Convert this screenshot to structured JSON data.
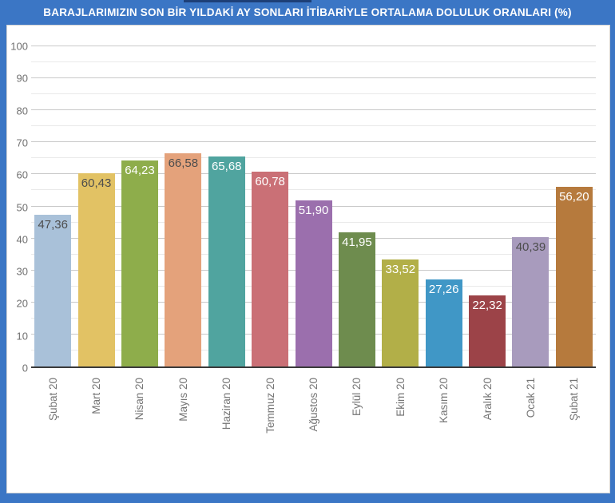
{
  "header": {
    "title": "BARAJLARIMIZIN SON BİR YILDAKİ AY SONLARI İTİBARİYLE ORTALAMA DOLULUK ORANLARI (%)"
  },
  "colors": {
    "frame_blue": "#3b76c5",
    "panel_background": "#ffffff",
    "panel_border": "#d3d3d3",
    "grid_major": "#c9c9c9",
    "grid_minor": "#e9e9e9",
    "axis_line": "#3a3a3a",
    "tick_label": "#757575",
    "title_text": "#ffffff"
  },
  "chart_data": {
    "type": "bar",
    "title": "BARAJLARIMIZIN SON BİR YILDAKİ AY SONLARI İTİBARİYLE ORTALAMA DOLULUK ORANLARI (%)",
    "xlabel": "",
    "ylabel": "",
    "ylim": [
      0,
      100
    ],
    "ytick_step": 10,
    "minor_step": 5,
    "yticks": [
      0,
      10,
      20,
      30,
      40,
      50,
      60,
      70,
      80,
      90,
      100
    ],
    "grid": "horizontal major+minor",
    "legend": "none",
    "categories": [
      "Şubat 20",
      "Mart 20",
      "Nisan 20",
      "Mayıs 20",
      "Haziran 20",
      "Temmuz 20",
      "Ağustos 20",
      "Eylül 20",
      "Ekim 20",
      "Kasım 20",
      "Aralık 20",
      "Ocak 21",
      "Şubat 21"
    ],
    "values": [
      47.36,
      60.43,
      64.23,
      66.58,
      65.68,
      60.78,
      51.9,
      41.95,
      33.52,
      27.26,
      22.32,
      40.39,
      56.2
    ],
    "value_labels": [
      "47,36",
      "60,43",
      "64,23",
      "66,58",
      "65,68",
      "60,78",
      "51,90",
      "41,95",
      "33,52",
      "27,26",
      "22,32",
      "40,39",
      "56,20"
    ],
    "bar_colors": [
      "#a9c1d9",
      "#e2c264",
      "#8ead4b",
      "#e4a27b",
      "#50a49f",
      "#ca7076",
      "#9b6fad",
      "#6e8c4e",
      "#b2af48",
      "#4097c6",
      "#9c4348",
      "#a89bbd",
      "#b67a3d"
    ],
    "value_label_colors": [
      "#4d4d4d",
      "#4d4d4d",
      "#ffffff",
      "#4d4d4d",
      "#ffffff",
      "#ffffff",
      "#ffffff",
      "#ffffff",
      "#ffffff",
      "#ffffff",
      "#ffffff",
      "#4d4d4d",
      "#ffffff"
    ]
  }
}
